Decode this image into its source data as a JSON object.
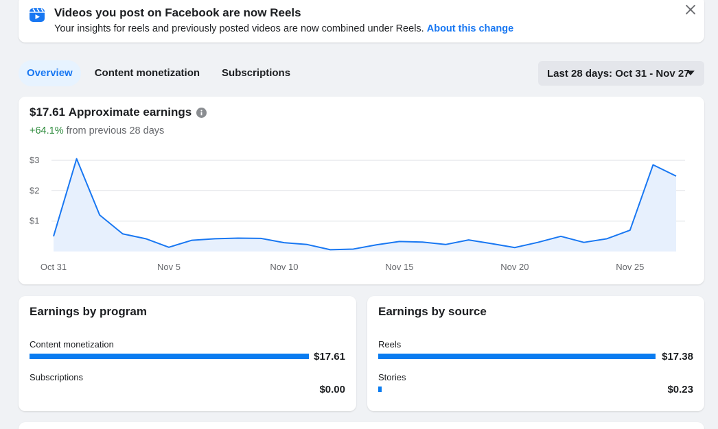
{
  "banner": {
    "title": "Videos you post on Facebook are now Reels",
    "description": "Your insights for reels and previously posted videos are now combined under Reels.",
    "link": "About this change",
    "icon": "reels-icon",
    "close_icon": "close-icon"
  },
  "tabs": [
    {
      "label": "Overview",
      "active": true
    },
    {
      "label": "Content monetization",
      "active": false
    },
    {
      "label": "Subscriptions",
      "active": false
    }
  ],
  "date_range": {
    "label": "Last 28 days: Oct 31 - Nov 27"
  },
  "earnings": {
    "amount": "$17.61",
    "title_label": "Approximate earnings",
    "change": "+64.1%",
    "change_suffix": "from previous 28 days"
  },
  "chart_data": {
    "type": "area",
    "x": [
      "Oct 31",
      "Nov 1",
      "Nov 2",
      "Nov 3",
      "Nov 4",
      "Nov 5",
      "Nov 6",
      "Nov 7",
      "Nov 8",
      "Nov 9",
      "Nov 10",
      "Nov 11",
      "Nov 12",
      "Nov 13",
      "Nov 14",
      "Nov 15",
      "Nov 16",
      "Nov 17",
      "Nov 18",
      "Nov 19",
      "Nov 20",
      "Nov 21",
      "Nov 22",
      "Nov 23",
      "Nov 24",
      "Nov 25",
      "Nov 26",
      "Nov 27"
    ],
    "values": [
      0.5,
      3.05,
      1.2,
      0.58,
      0.42,
      0.14,
      0.37,
      0.42,
      0.44,
      0.43,
      0.29,
      0.23,
      0.06,
      0.08,
      0.22,
      0.33,
      0.31,
      0.23,
      0.38,
      0.26,
      0.13,
      0.3,
      0.5,
      0.3,
      0.42,
      0.7,
      2.85,
      2.48
    ],
    "x_tick_labels": [
      "Oct 31",
      "Nov 5",
      "Nov 10",
      "Nov 15",
      "Nov 20",
      "Nov 25"
    ],
    "y_ticks": [
      1,
      2,
      3
    ],
    "y_tick_labels": [
      "$1",
      "$2",
      "$3"
    ],
    "ylim": [
      0,
      3.2
    ],
    "grid": true,
    "line_color": "#1877f2",
    "fill_color": "#e7f0fd"
  },
  "by_program": {
    "title": "Earnings by program",
    "rows": [
      {
        "label": "Content monetization",
        "value": "$17.61",
        "fraction": 1.0
      },
      {
        "label": "Subscriptions",
        "value": "$0.00",
        "fraction": 0.0
      }
    ]
  },
  "by_source": {
    "title": "Earnings by source",
    "rows": [
      {
        "label": "Reels",
        "value": "$17.38",
        "fraction": 1.0
      },
      {
        "label": "Stories",
        "value": "$0.23",
        "fraction": 0.013
      }
    ]
  }
}
